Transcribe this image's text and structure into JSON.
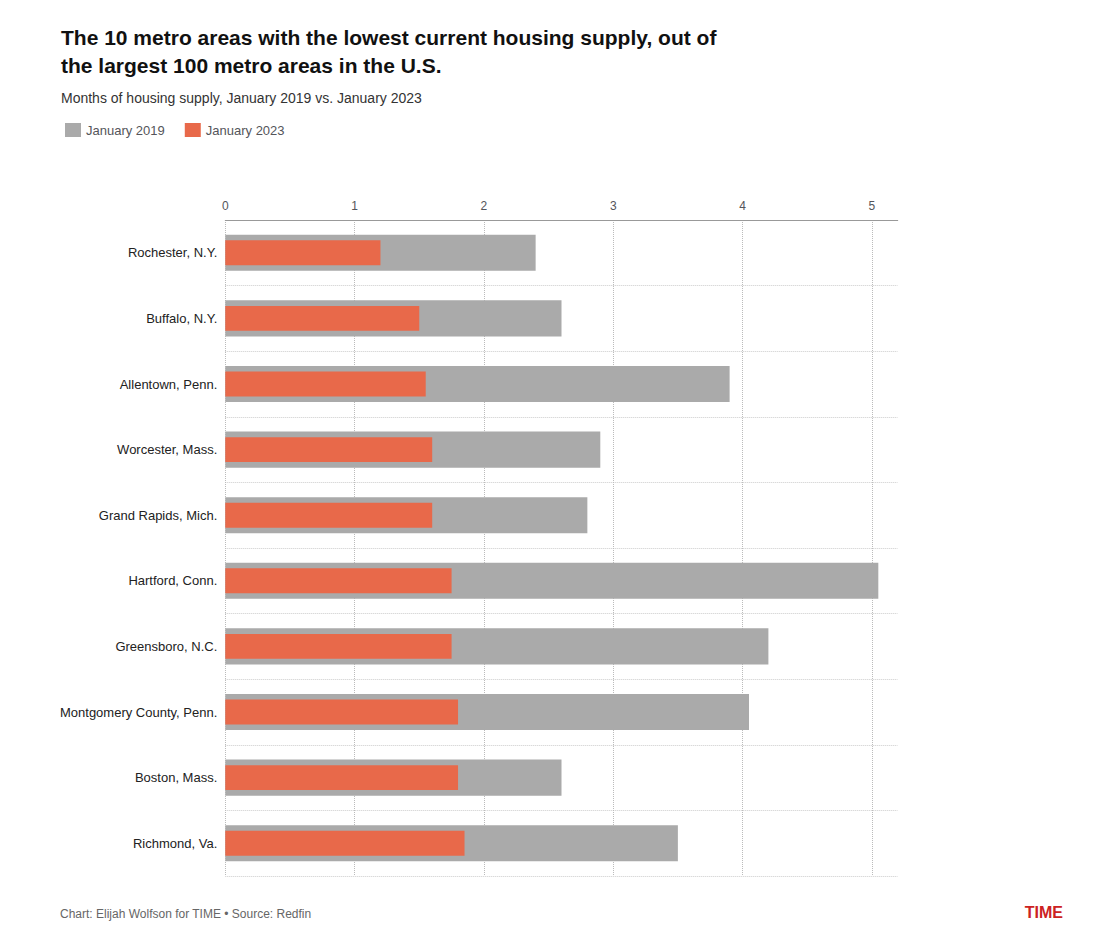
{
  "chart_data": {
    "type": "bar",
    "orientation": "horizontal",
    "title": "The 10 metro areas with the lowest current housing supply, out of\nthe largest 100 metro areas in the U.S.",
    "subtitle": "Months of housing supply, January 2019 vs. January 2023",
    "categories": [
      "Rochester, N.Y.",
      "Buffalo, N.Y.",
      "Allentown, Penn.",
      "Worcester, Mass.",
      "Grand Rapids, Mich.",
      "Hartford, Conn.",
      "Greensboro, N.C.",
      "Montgomery County, Penn.",
      "Boston, Mass.",
      "Richmond, Va."
    ],
    "series": [
      {
        "name": "January 2019",
        "color": "#aaaaaa",
        "values": [
          2.4,
          2.6,
          3.9,
          2.9,
          2.8,
          5.05,
          4.2,
          4.05,
          2.6,
          3.5
        ]
      },
      {
        "name": "January 2023",
        "color": "#e8694a",
        "values": [
          1.2,
          1.5,
          1.55,
          1.6,
          1.6,
          1.75,
          1.75,
          1.8,
          1.8,
          1.85
        ]
      }
    ],
    "xlim": [
      0,
      5.2
    ],
    "xticks": [
      0,
      1,
      2,
      3,
      4,
      5
    ],
    "grid": true,
    "legend": "top-left",
    "annotations": [
      {
        "text": "Chart: Elijah Wolfson for TIME • Source: Redfin"
      },
      {
        "text": "TIME",
        "color": "#cc2222"
      }
    ]
  }
}
